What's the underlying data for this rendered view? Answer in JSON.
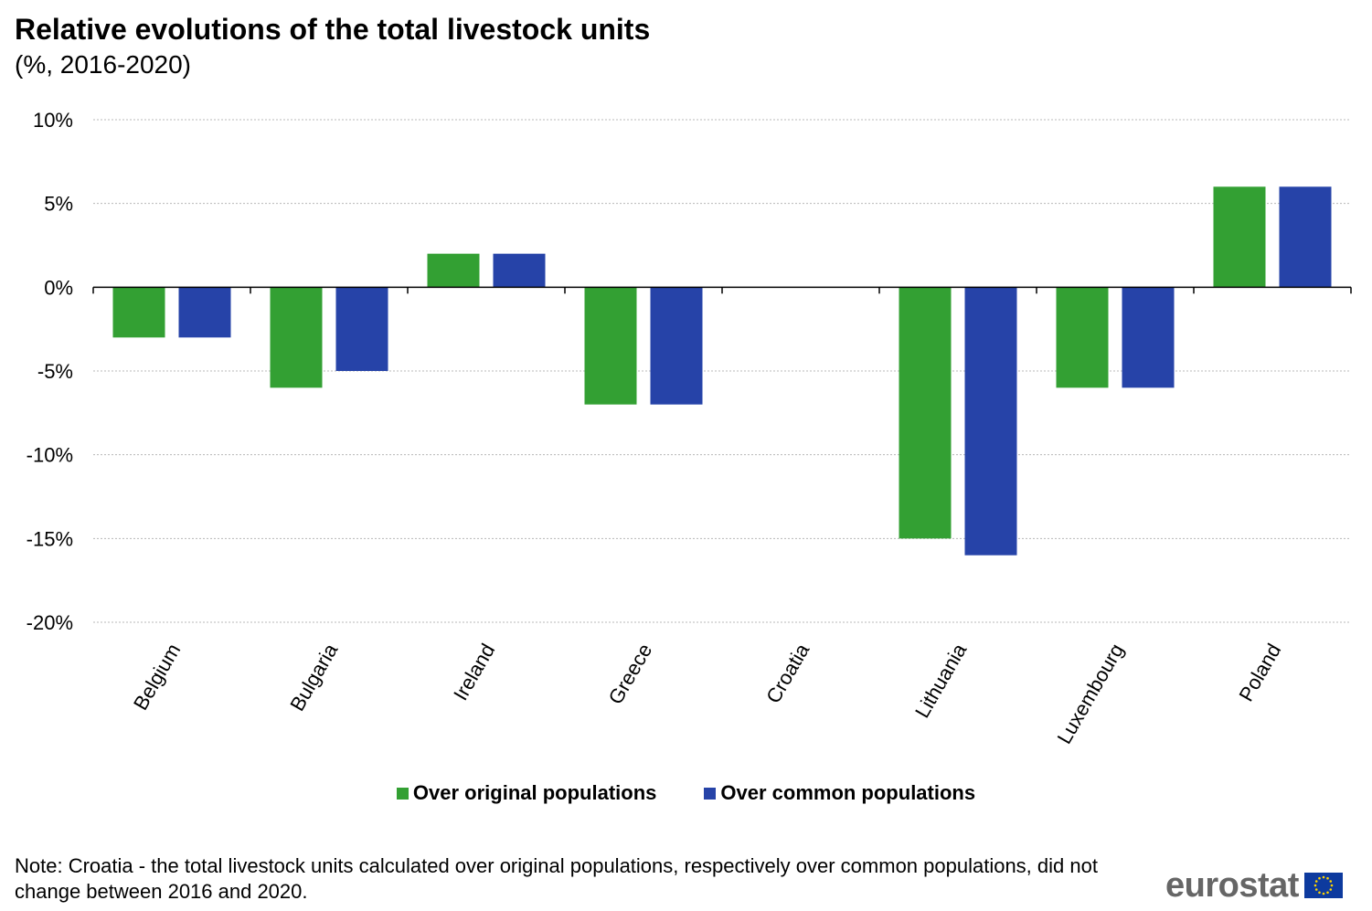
{
  "chart_data": {
    "type": "bar",
    "title": "Relative evolutions of the total livestock units",
    "subtitle": "(%, 2016-2020)",
    "categories": [
      "Belgium",
      "Bulgaria",
      "Ireland",
      "Greece",
      "Croatia",
      "Lithuania",
      "Luxembourg",
      "Poland"
    ],
    "series": [
      {
        "name": "Over original populations",
        "color": "#33a033",
        "values": [
          -3,
          -6,
          2,
          -7,
          0,
          -15,
          -6,
          6
        ]
      },
      {
        "name": "Over common populations",
        "color": "#2643a8",
        "values": [
          -3,
          -5,
          2,
          -7,
          0,
          -16,
          -6,
          6
        ]
      }
    ],
    "ylim": [
      -20,
      10
    ],
    "yticks": [
      10,
      5,
      0,
      -5,
      -10,
      -15,
      -20
    ],
    "ytick_labels": [
      "10%",
      "5%",
      "0%",
      "-5%",
      "-10%",
      "-15%",
      "-20%"
    ],
    "grid": true,
    "legend": "bottom-center"
  },
  "note": "Note: Croatia - the total livestock units calculated over original populations, respectively over common populations, did not change between 2016 and 2020.",
  "logo": {
    "text": "eurostat",
    "icon": "eu-flag-icon"
  }
}
